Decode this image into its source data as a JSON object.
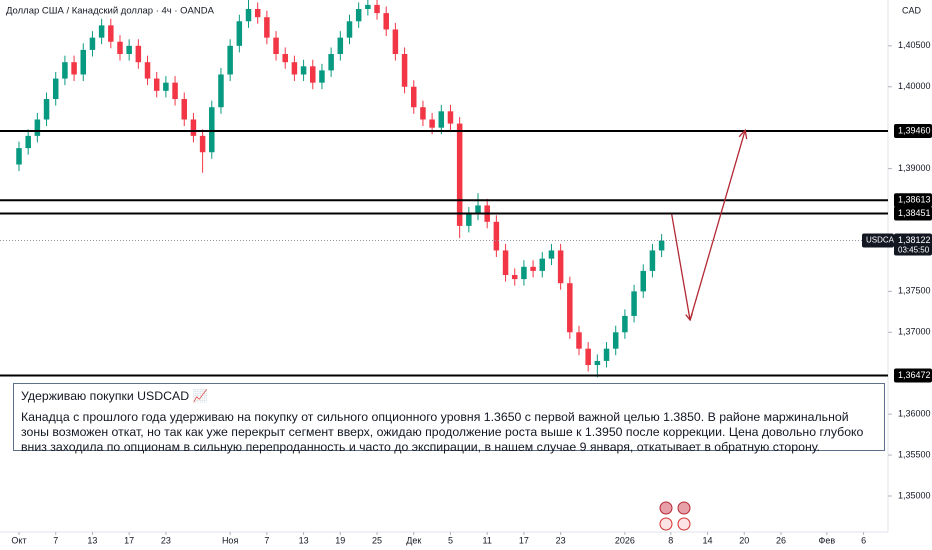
{
  "chart_data": {
    "type": "candlestick",
    "title": "Доллар США / Канадский доллар · 4ч · OANDA",
    "currency": "CAD",
    "x": [
      0,
      1,
      2,
      3,
      4,
      5,
      6,
      7,
      8,
      9,
      10,
      11,
      12,
      13,
      14,
      15,
      16,
      17,
      18,
      19,
      20,
      21,
      22,
      23,
      24,
      25,
      26,
      27,
      28,
      29,
      30,
      31,
      32,
      33,
      34,
      35,
      36,
      37,
      38,
      39,
      40,
      41,
      42,
      43,
      44,
      45,
      46,
      47,
      48,
      49,
      50,
      51,
      52,
      53,
      54,
      55,
      56,
      57,
      58,
      59,
      60,
      61,
      62,
      63,
      64,
      65,
      66,
      67,
      68,
      69,
      70
    ],
    "open": [
      1.3905,
      1.3925,
      1.394,
      1.396,
      1.3985,
      1.401,
      1.403,
      1.4015,
      1.4045,
      1.406,
      1.4075,
      1.4055,
      1.404,
      1.405,
      1.403,
      1.401,
      1.3995,
      1.4005,
      1.3985,
      1.396,
      1.394,
      1.392,
      1.3975,
      1.4015,
      1.405,
      1.408,
      1.4095,
      1.4085,
      1.406,
      1.404,
      1.403,
      1.4015,
      1.4025,
      1.4005,
      1.402,
      1.404,
      1.406,
      1.408,
      1.4095,
      1.41,
      1.409,
      1.407,
      1.404,
      1.4,
      1.3975,
      1.396,
      1.395,
      1.397,
      1.3955,
      1.383,
      1.3845,
      1.3855,
      1.3835,
      1.38,
      1.377,
      1.3765,
      1.378,
      1.3775,
      1.379,
      1.38,
      1.376,
      1.37,
      1.368,
      1.366,
      1.3665,
      1.368,
      1.37,
      1.372,
      1.375,
      1.3775,
      1.38
    ],
    "high": [
      1.3933,
      1.3948,
      1.3968,
      1.3993,
      1.4018,
      1.4038,
      1.4038,
      1.4053,
      1.4068,
      1.4083,
      1.4083,
      1.4063,
      1.4058,
      1.4058,
      1.4038,
      1.4018,
      1.4013,
      1.4013,
      1.3993,
      1.3968,
      1.3948,
      1.3983,
      1.4023,
      1.4058,
      1.4088,
      1.411,
      1.4103,
      1.4093,
      1.4068,
      1.4048,
      1.4038,
      1.4033,
      1.4033,
      1.4028,
      1.4048,
      1.4068,
      1.4088,
      1.4103,
      1.411,
      1.4108,
      1.4098,
      1.4078,
      1.4048,
      1.4008,
      1.3983,
      1.3968,
      1.3978,
      1.3978,
      1.3963,
      1.3853,
      1.387,
      1.3863,
      1.3843,
      1.3808,
      1.3778,
      1.3788,
      1.3788,
      1.3798,
      1.3808,
      1.3808,
      1.3768,
      1.3708,
      1.3688,
      1.3673,
      1.3688,
      1.3708,
      1.3728,
      1.3758,
      1.3783,
      1.3808,
      1.382
    ],
    "low": [
      1.3897,
      1.3917,
      1.3932,
      1.3952,
      1.3977,
      1.4002,
      1.4007,
      1.4007,
      1.4037,
      1.4052,
      1.4047,
      1.4032,
      1.4032,
      1.4022,
      1.4002,
      1.3987,
      1.3987,
      1.3977,
      1.3952,
      1.3932,
      1.3895,
      1.3912,
      1.3967,
      1.4007,
      1.4042,
      1.4072,
      1.4077,
      1.4052,
      1.4032,
      1.4022,
      1.4007,
      1.4007,
      1.3997,
      1.3997,
      1.4012,
      1.4032,
      1.4052,
      1.4072,
      1.4087,
      1.4082,
      1.4062,
      1.4032,
      1.3992,
      1.3967,
      1.3952,
      1.3942,
      1.3942,
      1.3947,
      1.3815,
      1.3822,
      1.3837,
      1.3827,
      1.3792,
      1.3762,
      1.3757,
      1.3757,
      1.3767,
      1.3767,
      1.3782,
      1.3752,
      1.3692,
      1.3672,
      1.3652,
      1.3645,
      1.3657,
      1.3672,
      1.3692,
      1.3712,
      1.3742,
      1.3767,
      1.3792
    ],
    "close": [
      1.3925,
      1.394,
      1.396,
      1.3985,
      1.401,
      1.403,
      1.4015,
      1.4045,
      1.406,
      1.4075,
      1.4055,
      1.404,
      1.405,
      1.403,
      1.401,
      1.3995,
      1.4005,
      1.3985,
      1.396,
      1.394,
      1.392,
      1.3975,
      1.4015,
      1.405,
      1.408,
      1.4095,
      1.4085,
      1.406,
      1.404,
      1.403,
      1.4015,
      1.4025,
      1.4005,
      1.402,
      1.404,
      1.406,
      1.408,
      1.4095,
      1.41,
      1.409,
      1.407,
      1.404,
      1.4,
      1.3975,
      1.396,
      1.395,
      1.397,
      1.3955,
      1.383,
      1.3845,
      1.3855,
      1.3835,
      1.38,
      1.377,
      1.3765,
      1.378,
      1.3775,
      1.379,
      1.38,
      1.376,
      1.37,
      1.368,
      1.366,
      1.3665,
      1.368,
      1.37,
      1.372,
      1.375,
      1.3775,
      1.38,
      1.3812
    ],
    "up_color": "#089981",
    "down_color": "#f23645",
    "xlim": [
      -2.07,
      94.66
    ],
    "xticks": [
      {
        "value": 0,
        "label": "Окт"
      },
      {
        "value": 4,
        "label": "7"
      },
      {
        "value": 8,
        "label": "13"
      },
      {
        "value": 12,
        "label": "17"
      },
      {
        "value": 16,
        "label": "23"
      },
      {
        "value": 23,
        "label": "Ноя"
      },
      {
        "value": 27,
        "label": "7"
      },
      {
        "value": 31,
        "label": "13"
      },
      {
        "value": 35,
        "label": "19"
      },
      {
        "value": 39,
        "label": "25"
      },
      {
        "value": 43,
        "label": "Дек"
      },
      {
        "value": 47,
        "label": "5"
      },
      {
        "value": 51,
        "label": "11"
      },
      {
        "value": 55,
        "label": "17"
      },
      {
        "value": 59,
        "label": "23"
      },
      {
        "value": 66,
        "label": "2026"
      },
      {
        "value": 71,
        "label": "8"
      },
      {
        "value": 75,
        "label": "14"
      },
      {
        "value": 79,
        "label": "20"
      },
      {
        "value": 83,
        "label": "26"
      },
      {
        "value": 88,
        "label": "Фев"
      },
      {
        "value": 92,
        "label": "6"
      }
    ],
    "ylim": [
      1.3456,
      1.4106
    ],
    "yticks": [
      {
        "value": 1.405,
        "label": "1,40500"
      },
      {
        "value": 1.4,
        "label": "1,40000"
      },
      {
        "value": 1.39,
        "label": "1,39000"
      },
      {
        "value": 1.375,
        "label": "1,37500"
      },
      {
        "value": 1.37,
        "label": "1,37000"
      },
      {
        "value": 1.36,
        "label": "1,36000"
      },
      {
        "value": 1.355,
        "label": "1,35500"
      },
      {
        "value": 1.35,
        "label": "1,35000"
      }
    ],
    "grid": false,
    "levels": [
      {
        "value": 1.3946,
        "label": "1,39460"
      },
      {
        "value": 1.38613,
        "label": "1,38613"
      },
      {
        "value": 1.38451,
        "label": "1,38451"
      },
      {
        "value": 1.36472,
        "label": "1,36472"
      }
    ],
    "level_color": "#000000",
    "symbol": "USDCAD",
    "last_price": {
      "value": 1.38122,
      "label": "1,38122"
    },
    "countdown": "03:45:50",
    "projection": {
      "x": [
        71.1,
        73.1,
        79.1
      ],
      "y": [
        1.3844,
        1.3715,
        1.3947
      ],
      "color": "#b22833"
    }
  },
  "note": {
    "title": "Удерживаю покупки USDCAD 📈",
    "text": "Канадца с прошлого года удерживаю на покупку от сильного опционного уровня 1.3650 с первой важной целью 1.3850. В районе маржинальной зоны возможен откат, но так как уже перекрыт сегмент вверх, ожидаю продолжение роста выше к 1.3950 после коррекции. Цена довольно глубоко вниз заходила по опционам в сильную перепроданность и часто до экспирации, в нашем случае 9 января, откатывает в обратную сторону."
  }
}
